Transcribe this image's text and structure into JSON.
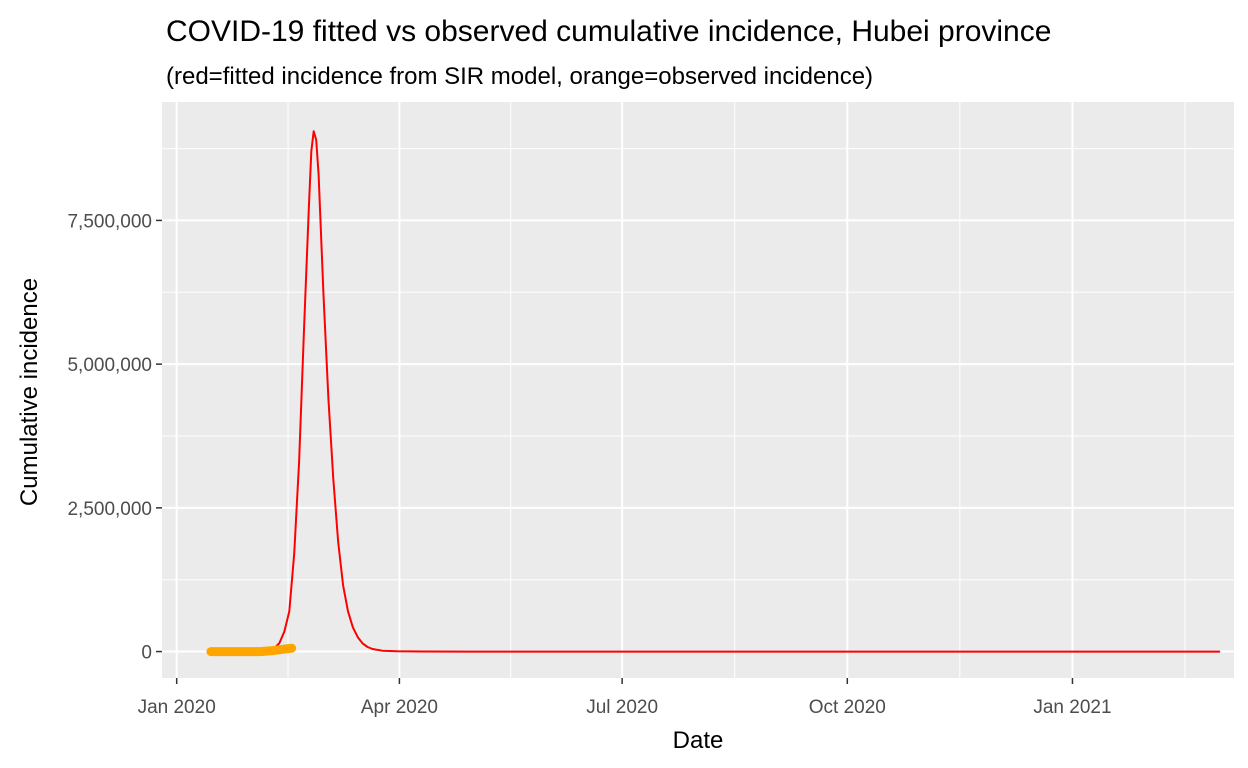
{
  "chart_data": {
    "type": "line",
    "title": "COVID-19 fitted vs observed cumulative incidence, Hubei province",
    "subtitle": "(red=fitted incidence from SIR model, orange=observed incidence)",
    "xlabel": "Date",
    "ylabel": "Cumulative incidence",
    "x_ticks": [
      "Jan 2020",
      "Apr 2020",
      "Jul 2020",
      "Oct 2020",
      "Jan 2021"
    ],
    "x_tick_days": [
      0,
      91,
      182,
      274,
      366
    ],
    "y_ticks": [
      0,
      2500000,
      5000000,
      7500000
    ],
    "y_tick_labels": [
      "0",
      "2,500,000",
      "5,000,000",
      "7,500,000"
    ],
    "xlim_days": [
      -6,
      432
    ],
    "ylim": [
      -460000,
      9560000
    ],
    "grid": true,
    "series": [
      {
        "name": "fitted incidence from SIR model",
        "color": "#ff0000",
        "points": [
          [
            14,
            0
          ],
          [
            30,
            0
          ],
          [
            35,
            10000
          ],
          [
            38,
            30000
          ],
          [
            40,
            60000
          ],
          [
            42,
            150000
          ],
          [
            44,
            350000
          ],
          [
            46,
            700000
          ],
          [
            48,
            1700000
          ],
          [
            50,
            3300000
          ],
          [
            52,
            5600000
          ],
          [
            54,
            7700000
          ],
          [
            55,
            8700000
          ],
          [
            56,
            9050000
          ],
          [
            57,
            8900000
          ],
          [
            58,
            8300000
          ],
          [
            60,
            6200000
          ],
          [
            62,
            4400000
          ],
          [
            64,
            3000000
          ],
          [
            66,
            1900000
          ],
          [
            68,
            1150000
          ],
          [
            70,
            700000
          ],
          [
            72,
            420000
          ],
          [
            74,
            250000
          ],
          [
            76,
            140000
          ],
          [
            78,
            80000
          ],
          [
            80,
            45000
          ],
          [
            84,
            15000
          ],
          [
            90,
            5000
          ],
          [
            100,
            1500
          ],
          [
            120,
            0
          ],
          [
            426,
            0
          ]
        ]
      },
      {
        "name": "observed incidence",
        "color": "#ffa500",
        "points": [
          [
            14,
            0
          ],
          [
            16,
            0
          ],
          [
            18,
            0
          ],
          [
            20,
            0
          ],
          [
            22,
            0
          ],
          [
            24,
            0
          ],
          [
            26,
            0
          ],
          [
            28,
            0
          ],
          [
            30,
            0
          ],
          [
            32,
            0
          ],
          [
            34,
            0
          ],
          [
            36,
            5000
          ],
          [
            38,
            12000
          ],
          [
            40,
            20000
          ],
          [
            42,
            30000
          ],
          [
            44,
            42000
          ],
          [
            46,
            54000
          ],
          [
            47,
            59000
          ]
        ]
      }
    ]
  }
}
